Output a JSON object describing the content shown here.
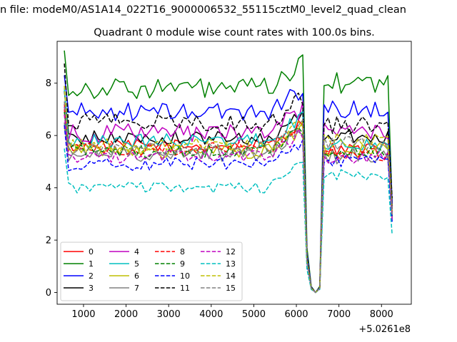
{
  "header_text": "n file: modeM0/AS1A14_022T16_9000006532_55115cztM0_level2_quad_clean",
  "chart_data": {
    "type": "line",
    "title": "Quadrant 0 module wise count rates with 100.0s bins.",
    "xlabel": "",
    "ylabel": "",
    "x_offset_label": "+5.0261e8",
    "xlim": [
      380,
      8700
    ],
    "ylim": [
      -0.45,
      9.6
    ],
    "xticks": [
      1000,
      2000,
      3000,
      4000,
      5000,
      6000,
      7000,
      8000
    ],
    "xtick_labels": [
      "1000",
      "2000",
      "3000",
      "4000",
      "5000",
      "6000",
      "7000",
      "8000"
    ],
    "yticks": [
      0,
      2,
      4,
      6,
      8
    ],
    "ytick_labels": [
      "0",
      "2",
      "4",
      "6",
      "8"
    ],
    "grid": false,
    "legend_position": "lower-left",
    "gti_1": {
      "x_start": 550,
      "x_end": 6150,
      "step": 100
    },
    "gti_2": {
      "x_start": 6650,
      "x_end": 8250,
      "step": 100
    },
    "dip_x": [
      6250,
      6350,
      6450,
      6550
    ],
    "series": [
      {
        "name": "0",
        "color": "#ff0000",
        "style": "solid",
        "level1": 5.6,
        "level2": 5.5,
        "start": 7.2,
        "end": 3.0,
        "amp": 0.25
      },
      {
        "name": "1",
        "color": "#008000",
        "style": "solid",
        "level1": 7.8,
        "level2": 8.0,
        "start": 9.25,
        "end": 3.3,
        "amp": 0.4
      },
      {
        "name": "2",
        "color": "#0000ff",
        "style": "solid",
        "level1": 6.9,
        "level2": 7.0,
        "start": 8.3,
        "end": 3.4,
        "amp": 0.35
      },
      {
        "name": "3",
        "color": "#000000",
        "style": "solid",
        "level1": 5.9,
        "level2": 6.0,
        "start": 7.7,
        "end": 3.2,
        "amp": 0.28
      },
      {
        "name": "4",
        "color": "#bf00bf",
        "style": "solid",
        "level1": 6.1,
        "level2": 6.2,
        "start": 7.1,
        "end": 3.1,
        "amp": 0.35
      },
      {
        "name": "5",
        "color": "#00bfbf",
        "style": "solid",
        "level1": 5.8,
        "level2": 5.7,
        "start": 7.8,
        "end": 2.9,
        "amp": 0.28
      },
      {
        "name": "6",
        "color": "#bfbf00",
        "style": "solid",
        "level1": 5.4,
        "level2": 5.4,
        "start": 6.3,
        "end": 2.8,
        "amp": 0.3
      },
      {
        "name": "7",
        "color": "#808080",
        "style": "solid",
        "level1": 5.3,
        "level2": 5.2,
        "start": 6.5,
        "end": 2.9,
        "amp": 0.3
      },
      {
        "name": "8",
        "color": "#ff0000",
        "style": "dashed",
        "level1": 5.5,
        "level2": 5.3,
        "start": 7.0,
        "end": 3.0,
        "amp": 0.28
      },
      {
        "name": "9",
        "color": "#008000",
        "style": "dashed",
        "level1": 5.4,
        "level2": 5.4,
        "start": 6.9,
        "end": 2.9,
        "amp": 0.25
      },
      {
        "name": "10",
        "color": "#0000ff",
        "style": "dashed",
        "level1": 4.9,
        "level2": 5.0,
        "start": 6.4,
        "end": 2.7,
        "amp": 0.25
      },
      {
        "name": "11",
        "color": "#000000",
        "style": "dashed",
        "level1": 6.5,
        "level2": 6.4,
        "start": 8.75,
        "end": 3.6,
        "amp": 0.35
      },
      {
        "name": "12",
        "color": "#bf00bf",
        "style": "dashed",
        "level1": 5.2,
        "level2": 5.2,
        "start": 6.8,
        "end": 2.8,
        "amp": 0.25
      },
      {
        "name": "13",
        "color": "#00bfbf",
        "style": "dashed",
        "level1": 4.0,
        "level2": 4.5,
        "start": 5.5,
        "end": 2.2,
        "amp": 0.2
      },
      {
        "name": "14",
        "color": "#bfbf00",
        "style": "dashed",
        "level1": 5.6,
        "level2": 5.8,
        "start": 7.9,
        "end": 3.0,
        "amp": 0.3
      },
      {
        "name": "15",
        "color": "#808080",
        "style": "dashed",
        "level1": 5.5,
        "level2": 5.7,
        "start": 7.3,
        "end": 3.0,
        "amp": 0.28
      }
    ]
  }
}
